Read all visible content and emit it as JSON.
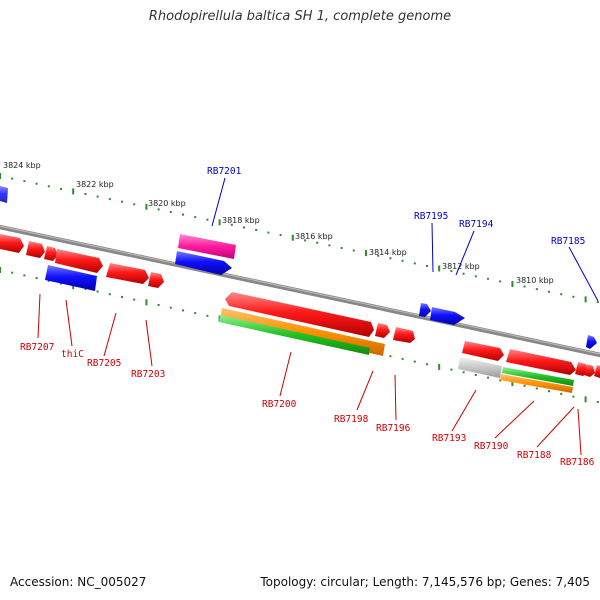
{
  "title": "Rhodopirellula baltica SH 1, complete genome",
  "footer": {
    "accession": "Accession: NC_005027",
    "summary": "Topology: circular; Length: 7,145,576 bp; Genes: 7,405"
  },
  "colors": {
    "backbone": "#888888",
    "tick": "#2e8b2e",
    "gene_red": "#ee0000",
    "gene_blue": "#0000ee",
    "label_red": "#cc0000",
    "label_blue": "#0000cc"
  },
  "kbp_labels": [
    "3824 kbp",
    "3822 kbp",
    "3820 kbp",
    "3818 kbp",
    "3816 kbp",
    "3814 kbp",
    "3812 kbp",
    "3810 kbp"
  ],
  "gene_labels": {
    "top": [
      "RB7201",
      "RB7195",
      "RB7194",
      "RB7185"
    ],
    "bottom": [
      "RB7207",
      "thiC",
      "RB7205",
      "RB7203",
      "RB7200",
      "RB7198",
      "RB7196",
      "RB7193",
      "RB7190",
      "RB7188",
      "RB7186"
    ]
  }
}
